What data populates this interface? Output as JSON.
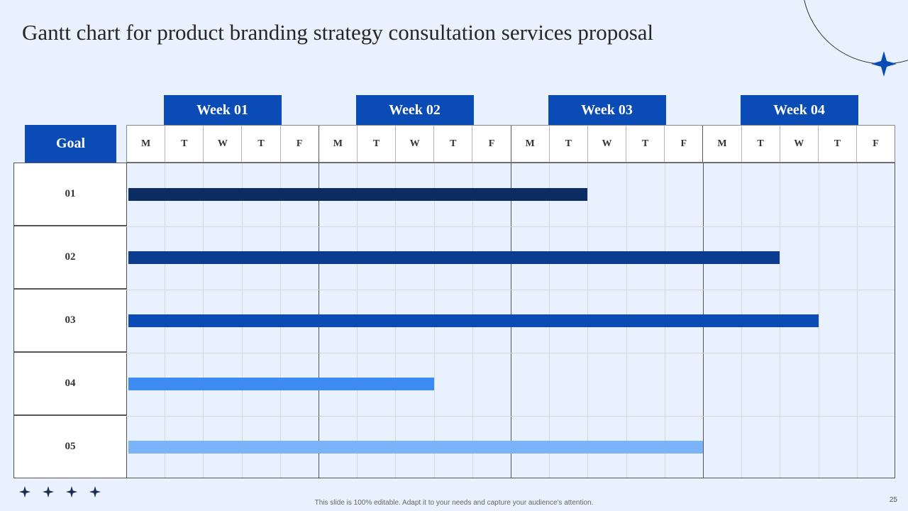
{
  "slide": {
    "title": "Gantt chart for product branding strategy consultation services proposal",
    "footer_note": "This slide is 100% editable. Adapt it to your needs and capture your audience's attention.",
    "page_number": "25",
    "goal_header": "Goal"
  },
  "colors": {
    "background": "#e8f1fd",
    "header_fill": "#0a4bb5",
    "accent_star": "#0a4bb5"
  },
  "chart_data": {
    "type": "gantt",
    "weeks": [
      "Week 01",
      "Week 02",
      "Week 03",
      "Week 04"
    ],
    "days": [
      "M",
      "T",
      "W",
      "T",
      "F"
    ],
    "tasks": [
      {
        "name": "01",
        "start_day": 0,
        "end_day": 12,
        "color": "#0b2d64"
      },
      {
        "name": "02",
        "start_day": 0,
        "end_day": 17,
        "color": "#0c3c8f"
      },
      {
        "name": "03",
        "start_day": 0,
        "end_day": 18,
        "color": "#0a4bb5"
      },
      {
        "name": "04",
        "start_day": 0,
        "end_day": 8,
        "color": "#3e8bf2"
      },
      {
        "name": "05",
        "start_day": 0,
        "end_day": 15,
        "color": "#7ab3f8"
      }
    ]
  }
}
